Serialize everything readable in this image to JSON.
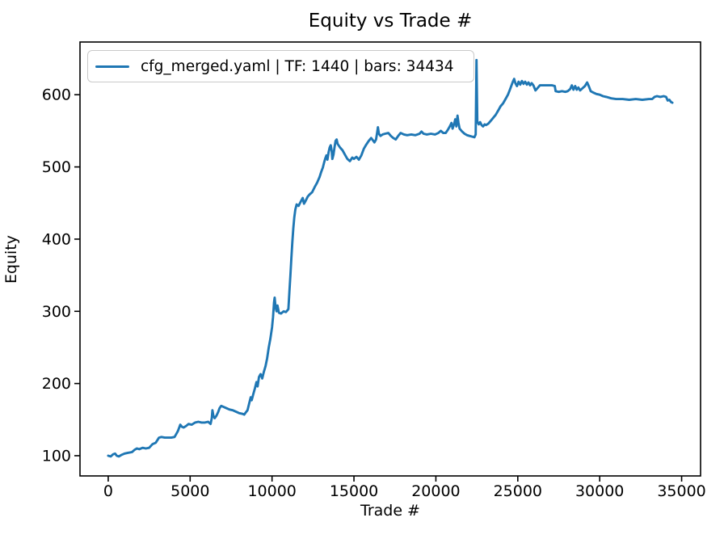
{
  "title": "Equity vs Trade #",
  "legend": {
    "label": "cfg_merged.yaml | TF: 1440 | bars: 34434",
    "line_color": "#1f77b4"
  },
  "chart_data": {
    "type": "line",
    "title": "Equity vs Trade #",
    "xlabel": "Trade #",
    "ylabel": "Equity",
    "xlim": [
      -1722,
      36156
    ],
    "ylim": [
      72,
      673
    ],
    "xticks": [
      0,
      5000,
      10000,
      15000,
      20000,
      25000,
      30000,
      35000
    ],
    "yticks": [
      100,
      200,
      300,
      400,
      500,
      600
    ],
    "grid": false,
    "legend_position": "upper left",
    "series": [
      {
        "name": "cfg_merged.yaml | TF: 1440 | bars: 34434",
        "color": "#1f77b4",
        "points": [
          [
            0,
            100
          ],
          [
            150,
            99
          ],
          [
            300,
            102
          ],
          [
            420,
            103
          ],
          [
            520,
            100
          ],
          [
            650,
            99
          ],
          [
            800,
            101
          ],
          [
            1000,
            103
          ],
          [
            1200,
            104
          ],
          [
            1450,
            105
          ],
          [
            1600,
            108
          ],
          [
            1750,
            110
          ],
          [
            1900,
            109
          ],
          [
            2100,
            111
          ],
          [
            2300,
            110
          ],
          [
            2500,
            111
          ],
          [
            2700,
            116
          ],
          [
            2900,
            118
          ],
          [
            3100,
            125
          ],
          [
            3250,
            126
          ],
          [
            3450,
            125
          ],
          [
            3650,
            125
          ],
          [
            3850,
            125
          ],
          [
            4050,
            126
          ],
          [
            4150,
            130
          ],
          [
            4250,
            134
          ],
          [
            4400,
            143
          ],
          [
            4500,
            140
          ],
          [
            4600,
            139
          ],
          [
            4750,
            141
          ],
          [
            4900,
            144
          ],
          [
            5100,
            143
          ],
          [
            5300,
            146
          ],
          [
            5500,
            147
          ],
          [
            5700,
            146
          ],
          [
            5900,
            146
          ],
          [
            6100,
            147
          ],
          [
            6250,
            144
          ],
          [
            6320,
            152
          ],
          [
            6360,
            163
          ],
          [
            6420,
            155
          ],
          [
            6500,
            152
          ],
          [
            6600,
            155
          ],
          [
            6700,
            160
          ],
          [
            6800,
            166
          ],
          [
            6900,
            169
          ],
          [
            7000,
            168
          ],
          [
            7200,
            166
          ],
          [
            7400,
            164
          ],
          [
            7600,
            163
          ],
          [
            7800,
            161
          ],
          [
            8000,
            159
          ],
          [
            8200,
            158
          ],
          [
            8300,
            157
          ],
          [
            8400,
            160
          ],
          [
            8500,
            163
          ],
          [
            8600,
            172
          ],
          [
            8700,
            181
          ],
          [
            8760,
            177
          ],
          [
            8850,
            185
          ],
          [
            8950,
            193
          ],
          [
            9050,
            202
          ],
          [
            9120,
            196
          ],
          [
            9200,
            209
          ],
          [
            9300,
            213
          ],
          [
            9400,
            207
          ],
          [
            9500,
            216
          ],
          [
            9600,
            224
          ],
          [
            9700,
            235
          ],
          [
            9800,
            250
          ],
          [
            9900,
            262
          ],
          [
            10000,
            278
          ],
          [
            10060,
            292
          ],
          [
            10120,
            312
          ],
          [
            10160,
            319
          ],
          [
            10220,
            305
          ],
          [
            10280,
            300
          ],
          [
            10330,
            308
          ],
          [
            10420,
            298
          ],
          [
            10550,
            297
          ],
          [
            10700,
            300
          ],
          [
            10850,
            299
          ],
          [
            11000,
            303
          ],
          [
            11060,
            328
          ],
          [
            11120,
            350
          ],
          [
            11180,
            374
          ],
          [
            11240,
            396
          ],
          [
            11300,
            415
          ],
          [
            11360,
            430
          ],
          [
            11420,
            441
          ],
          [
            11500,
            448
          ],
          [
            11620,
            446
          ],
          [
            11750,
            452
          ],
          [
            11870,
            457
          ],
          [
            11950,
            449
          ],
          [
            12050,
            453
          ],
          [
            12180,
            459
          ],
          [
            12300,
            462
          ],
          [
            12450,
            465
          ],
          [
            12600,
            472
          ],
          [
            12750,
            478
          ],
          [
            12900,
            486
          ],
          [
            13000,
            493
          ],
          [
            13100,
            499
          ],
          [
            13180,
            506
          ],
          [
            13250,
            512
          ],
          [
            13320,
            516
          ],
          [
            13380,
            510
          ],
          [
            13450,
            520
          ],
          [
            13520,
            527
          ],
          [
            13580,
            530
          ],
          [
            13640,
            522
          ],
          [
            13680,
            511
          ],
          [
            13750,
            517
          ],
          [
            13820,
            528
          ],
          [
            13880,
            536
          ],
          [
            13940,
            538
          ],
          [
            14000,
            532
          ],
          [
            14150,
            527
          ],
          [
            14300,
            523
          ],
          [
            14450,
            517
          ],
          [
            14600,
            511
          ],
          [
            14750,
            508
          ],
          [
            14900,
            513
          ],
          [
            15000,
            511
          ],
          [
            15150,
            514
          ],
          [
            15300,
            510
          ],
          [
            15450,
            516
          ],
          [
            15600,
            525
          ],
          [
            15750,
            531
          ],
          [
            15900,
            536
          ],
          [
            16050,
            540
          ],
          [
            16150,
            537
          ],
          [
            16250,
            534
          ],
          [
            16350,
            538
          ],
          [
            16420,
            548
          ],
          [
            16460,
            555
          ],
          [
            16520,
            546
          ],
          [
            16620,
            543
          ],
          [
            16750,
            545
          ],
          [
            16900,
            546
          ],
          [
            17100,
            547
          ],
          [
            17250,
            543
          ],
          [
            17400,
            540
          ],
          [
            17550,
            538
          ],
          [
            17700,
            543
          ],
          [
            17850,
            547
          ],
          [
            18050,
            545
          ],
          [
            18250,
            544
          ],
          [
            18500,
            545
          ],
          [
            18750,
            544
          ],
          [
            19000,
            546
          ],
          [
            19120,
            549
          ],
          [
            19250,
            546
          ],
          [
            19450,
            545
          ],
          [
            19700,
            546
          ],
          [
            19950,
            545
          ],
          [
            20150,
            547
          ],
          [
            20300,
            550
          ],
          [
            20450,
            547
          ],
          [
            20600,
            547
          ],
          [
            20750,
            552
          ],
          [
            20870,
            557
          ],
          [
            20950,
            561
          ],
          [
            21020,
            553
          ],
          [
            21120,
            560
          ],
          [
            21180,
            566
          ],
          [
            21250,
            556
          ],
          [
            21320,
            571
          ],
          [
            21380,
            561
          ],
          [
            21450,
            553
          ],
          [
            21600,
            549
          ],
          [
            21750,
            546
          ],
          [
            21900,
            544
          ],
          [
            22050,
            543
          ],
          [
            22200,
            542
          ],
          [
            22350,
            541
          ],
          [
            22430,
            545
          ],
          [
            22480,
            648
          ],
          [
            22530,
            563
          ],
          [
            22620,
            559
          ],
          [
            22700,
            562
          ],
          [
            22790,
            558
          ],
          [
            22880,
            556
          ],
          [
            22980,
            559
          ],
          [
            23060,
            558
          ],
          [
            23200,
            560
          ],
          [
            23350,
            564
          ],
          [
            23500,
            568
          ],
          [
            23650,
            572
          ],
          [
            23800,
            578
          ],
          [
            23950,
            584
          ],
          [
            24100,
            588
          ],
          [
            24250,
            594
          ],
          [
            24400,
            600
          ],
          [
            24500,
            606
          ],
          [
            24600,
            612
          ],
          [
            24700,
            618
          ],
          [
            24780,
            622
          ],
          [
            24850,
            616
          ],
          [
            24950,
            612
          ],
          [
            25050,
            618
          ],
          [
            25150,
            614
          ],
          [
            25250,
            619
          ],
          [
            25350,
            615
          ],
          [
            25450,
            618
          ],
          [
            25550,
            614
          ],
          [
            25650,
            617
          ],
          [
            25750,
            613
          ],
          [
            25850,
            616
          ],
          [
            25950,
            613
          ],
          [
            26080,
            606
          ],
          [
            26200,
            609
          ],
          [
            26350,
            613
          ],
          [
            26500,
            613
          ],
          [
            26700,
            613
          ],
          [
            26900,
            613
          ],
          [
            27100,
            613
          ],
          [
            27260,
            612
          ],
          [
            27310,
            605
          ],
          [
            27500,
            604
          ],
          [
            27700,
            605
          ],
          [
            27900,
            604
          ],
          [
            28050,
            605
          ],
          [
            28200,
            608
          ],
          [
            28300,
            613
          ],
          [
            28400,
            607
          ],
          [
            28500,
            612
          ],
          [
            28600,
            607
          ],
          [
            28700,
            610
          ],
          [
            28800,
            606
          ],
          [
            28950,
            609
          ],
          [
            29100,
            612
          ],
          [
            29230,
            617
          ],
          [
            29350,
            611
          ],
          [
            29450,
            605
          ],
          [
            29600,
            603
          ],
          [
            29800,
            601
          ],
          [
            30000,
            600
          ],
          [
            30200,
            598
          ],
          [
            30400,
            597
          ],
          [
            30700,
            595
          ],
          [
            31000,
            594
          ],
          [
            31400,
            594
          ],
          [
            31800,
            593
          ],
          [
            32200,
            594
          ],
          [
            32600,
            593
          ],
          [
            33000,
            594
          ],
          [
            33200,
            594
          ],
          [
            33350,
            597
          ],
          [
            33500,
            598
          ],
          [
            33700,
            597
          ],
          [
            33900,
            598
          ],
          [
            34050,
            597
          ],
          [
            34150,
            592
          ],
          [
            34250,
            593
          ],
          [
            34350,
            590
          ],
          [
            34434,
            589
          ]
        ]
      }
    ]
  }
}
